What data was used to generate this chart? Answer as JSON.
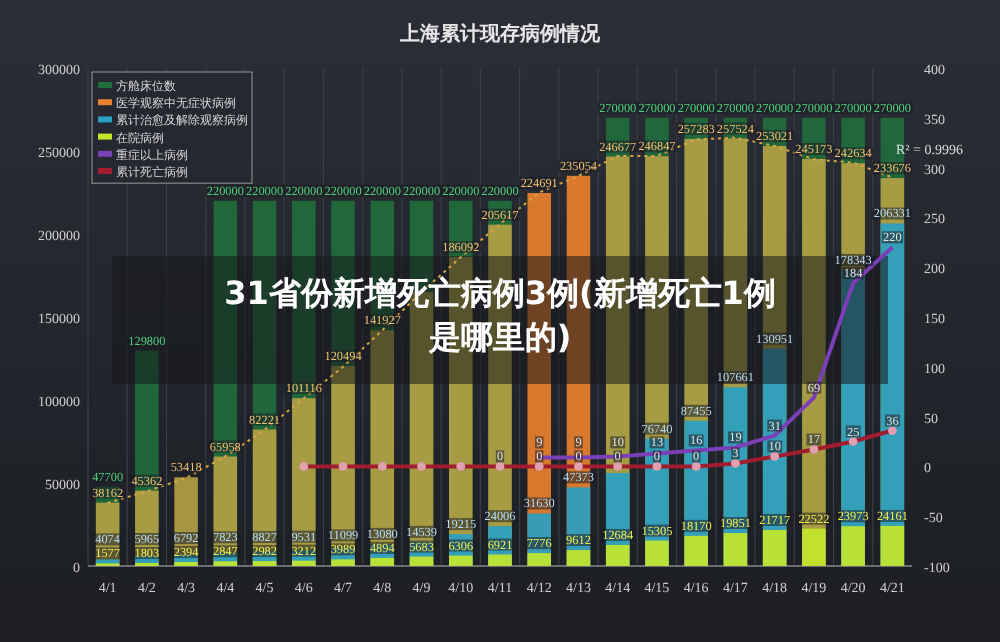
{
  "chart_data": {
    "type": "bar",
    "title": "上海累计现存病例情况",
    "categories": [
      "4/1",
      "4/2",
      "4/3",
      "4/4",
      "4/5",
      "4/6",
      "4/7",
      "4/8",
      "4/9",
      "4/10",
      "4/11",
      "4/12",
      "4/13",
      "4/14",
      "4/15",
      "4/16",
      "4/17",
      "4/18",
      "4/19",
      "4/20",
      "4/21"
    ],
    "series": [
      {
        "name": "方舱床位数",
        "color": "#1f6e3c",
        "values": [
          47700,
          129800,
          null,
          220000,
          220000,
          220000,
          220000,
          220000,
          220000,
          220000,
          220000,
          null,
          null,
          270000,
          270000,
          270000,
          270000,
          270000,
          270000,
          270000,
          270000
        ],
        "value_labels": [
          "47700",
          "129800",
          null,
          "220000",
          "220000",
          "220000",
          "220000",
          "220000",
          "220000",
          "220000",
          "220000",
          null,
          null,
          "270000",
          "270000",
          "270000",
          "270000",
          "270000",
          "270000",
          "270000",
          "270000"
        ]
      },
      {
        "name": "医学观察中无症状病例",
        "color": "#e8802e",
        "colors": [
          "#b3a044",
          "#b3a044",
          "#b3a044",
          "#b3a044",
          "#b3a044",
          "#b3a044",
          "#b3a044",
          "#b3a044",
          "#b3a044",
          "#b3a044",
          "#b3a044",
          "#e8802e",
          "#e8802e",
          "#b3a044",
          "#b3a044",
          "#b3a044",
          "#b3a044",
          "#b3a044",
          "#b3a044",
          "#b3a044",
          "#b3a044"
        ],
        "values": [
          38162,
          45362,
          53418,
          65958,
          82221,
          101116,
          120494,
          141927,
          165000,
          186092,
          205617,
          224691,
          235054,
          246677,
          246847,
          257283,
          257524,
          253021,
          245173,
          242634,
          233676
        ],
        "value_labels": [
          "38162",
          "45362",
          "53418",
          "65958",
          "82221",
          "101116",
          "120494",
          "141927",
          null,
          "186092",
          "205617",
          "224691",
          "235054",
          "246677",
          "246847",
          "257283",
          "257524",
          "253021",
          "245173",
          "242634",
          "233676"
        ]
      },
      {
        "name": "累计治愈及解除观察病例",
        "color": "#2a9fc2",
        "values": [
          4074,
          5965,
          6792,
          7823,
          8827,
          9531,
          11099,
          13080,
          14539,
          19215,
          24006,
          31630,
          47373,
          56000,
          76740,
          87455,
          107661,
          130951,
          null,
          178343,
          206331
        ],
        "value_labels": [
          "4074",
          "5965",
          "6792",
          "7823",
          "8827",
          "9531",
          "11099",
          "13080",
          "14539",
          "19215",
          "24006",
          "31630",
          "47373",
          null,
          "76740",
          "87455",
          "107661",
          "130951",
          null,
          "178343",
          "206331"
        ]
      },
      {
        "name": "在院病例",
        "color": "#c4e62c",
        "values": [
          1577,
          1803,
          2394,
          2847,
          2982,
          3212,
          3989,
          4894,
          5683,
          6306,
          6921,
          7776,
          9612,
          12684,
          15305,
          18170,
          19851,
          21717,
          22522,
          23973,
          24161
        ],
        "value_labels": [
          "1577",
          "1803",
          "2394",
          "2847",
          "2982",
          "3212",
          "3989",
          "4894",
          "5683",
          "6306",
          "6921",
          "7776",
          "9612",
          "12684",
          "15305",
          "18170",
          "19851",
          "21717",
          "22522",
          "23973",
          "24161"
        ]
      },
      {
        "type": "line",
        "line_style": "dotted",
        "color": "#d9a441",
        "values": [
          38000,
          45000,
          53000,
          66000,
          82000,
          101000,
          120000,
          142000,
          165000,
          186000,
          206000,
          225000,
          235000,
          247000,
          247000,
          257000,
          258000,
          253000,
          245000,
          243000,
          234000
        ]
      },
      {
        "name": "重症以上病例",
        "type": "line",
        "axis": "y2",
        "color": "#7b3fb8",
        "values": [
          null,
          null,
          null,
          null,
          null,
          null,
          null,
          null,
          null,
          null,
          null,
          9,
          9,
          10,
          13,
          16,
          19,
          31,
          69,
          184,
          220
        ],
        "value_labels": [
          null,
          null,
          null,
          null,
          null,
          null,
          null,
          null,
          null,
          null,
          null,
          "9",
          "9",
          "10",
          "13",
          "16",
          "19",
          "31",
          "69",
          "184",
          "220"
        ]
      },
      {
        "name": "累计死亡病例",
        "type": "line",
        "axis": "y2",
        "marker": "circle",
        "color": "#a01c2e",
        "values": [
          null,
          null,
          null,
          null,
          null,
          0,
          0,
          0,
          0,
          0,
          0,
          0,
          0,
          0,
          0,
          0,
          3,
          10,
          17,
          25,
          36
        ],
        "value_labels": [
          null,
          null,
          null,
          null,
          null,
          null,
          null,
          null,
          null,
          null,
          "0",
          "0",
          "0",
          "0",
          "0",
          "0",
          "3",
          "10",
          "17",
          "25",
          "36"
        ]
      }
    ],
    "ylim": [
      0,
      300000
    ],
    "yticks": [
      0,
      50000,
      100000,
      150000,
      200000,
      250000,
      300000
    ],
    "y2lim": [
      -100,
      400
    ],
    "y2ticks": [
      -100,
      -50,
      0,
      50,
      100,
      150,
      200,
      250,
      300,
      350,
      400
    ],
    "grid": "x",
    "legend": "top left",
    "annotations": [
      "R² = 0.9996",
      "31省份新增死亡病例3例(新增死亡1例是哪里的)"
    ]
  }
}
